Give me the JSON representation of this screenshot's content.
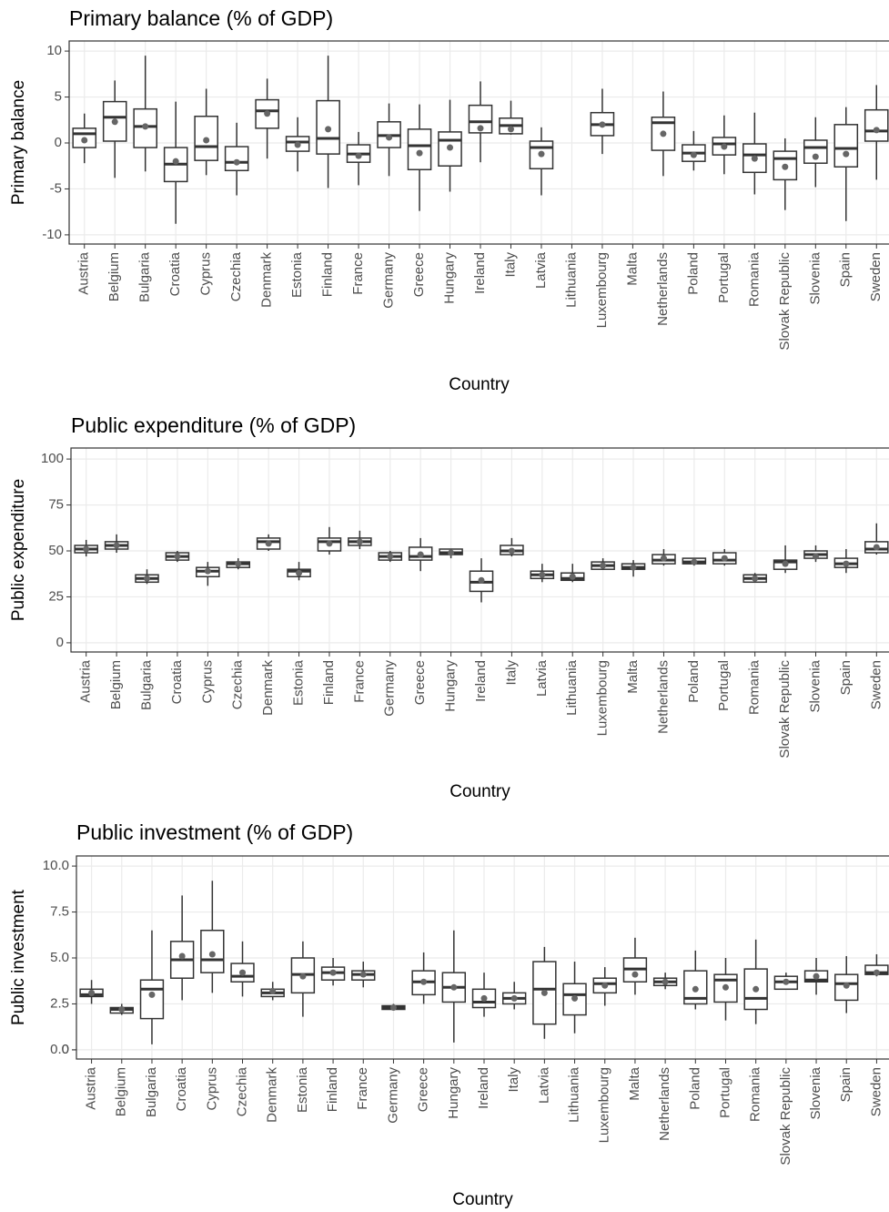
{
  "chart_data": [
    {
      "type": "box",
      "title": "Primary balance (% of GDP)",
      "x_label": "Country",
      "y_label": "Primary balance",
      "categories": [
        "Austria",
        "Belgium",
        "Bulgaria",
        "Croatia",
        "Cyprus",
        "Czechia",
        "Denmark",
        "Estonia",
        "Finland",
        "France",
        "Germany",
        "Greece",
        "Hungary",
        "Ireland",
        "Italy",
        "Latvia",
        "Lithuania",
        "Luxembourg",
        "Malta",
        "Netherlands",
        "Poland",
        "Portugal",
        "Romania",
        "Slovak Republic",
        "Slovenia",
        "Spain",
        "Sweden"
      ],
      "whisker_low": [
        -2.2,
        -3.8,
        -3.1,
        -8.8,
        -3.5,
        -5.7,
        -1.7,
        -3.1,
        -4.9,
        -4.6,
        -3.6,
        -7.4,
        -5.3,
        -2.1,
        0.9,
        -5.7,
        null,
        -1.2,
        null,
        -3.6,
        -3.0,
        -3.4,
        -5.6,
        -7.3,
        -4.8,
        -8.5,
        -4.0
      ],
      "q1": [
        -0.5,
        0.2,
        -0.5,
        -4.2,
        -1.9,
        -3.0,
        1.6,
        -0.9,
        -1.2,
        -2.1,
        -0.5,
        -2.9,
        -2.5,
        1.1,
        1.0,
        -2.8,
        null,
        0.8,
        null,
        -0.8,
        -2.0,
        -1.3,
        -3.2,
        -4.0,
        -2.2,
        -2.6,
        0.2
      ],
      "median": [
        1.0,
        2.8,
        1.8,
        -2.3,
        -0.4,
        -2.1,
        3.5,
        0.1,
        0.5,
        -1.2,
        0.8,
        -0.3,
        0.3,
        2.3,
        1.9,
        -0.5,
        null,
        2.0,
        null,
        2.2,
        -1.1,
        -0.1,
        -1.3,
        -1.7,
        -0.5,
        -0.6,
        1.3
      ],
      "q3": [
        1.6,
        4.5,
        3.7,
        -0.5,
        2.9,
        -0.4,
        4.7,
        0.7,
        4.6,
        -0.2,
        2.3,
        1.5,
        1.2,
        4.1,
        2.7,
        0.2,
        null,
        3.3,
        null,
        2.8,
        -0.2,
        0.6,
        -0.1,
        -0.9,
        0.3,
        2.0,
        3.6
      ],
      "whisker_high": [
        3.2,
        6.8,
        9.5,
        4.5,
        5.9,
        2.2,
        7.0,
        2.8,
        9.5,
        1.2,
        4.3,
        4.2,
        4.7,
        6.7,
        4.6,
        1.7,
        null,
        5.9,
        null,
        5.6,
        1.3,
        3.0,
        3.3,
        0.5,
        2.8,
        3.9,
        6.3
      ],
      "mean": [
        0.3,
        2.3,
        1.8,
        -2.0,
        0.3,
        -2.1,
        3.2,
        -0.2,
        1.5,
        -1.4,
        0.6,
        -1.1,
        -0.5,
        1.6,
        1.5,
        -1.2,
        null,
        2.0,
        null,
        1.0,
        -1.3,
        -0.4,
        -1.7,
        -2.6,
        -1.5,
        -1.2,
        1.4
      ],
      "ylim": [
        -11,
        11.1
      ],
      "yticks": [
        -10,
        -5,
        0,
        5,
        10
      ],
      "grid": true,
      "color": "#333333",
      "mean_color": "#666666"
    },
    {
      "type": "box",
      "title": "Public expenditure (% of GDP)",
      "x_label": "Country",
      "y_label": "Public expenditure",
      "categories": [
        "Austria",
        "Belgium",
        "Bulgaria",
        "Croatia",
        "Cyprus",
        "Czechia",
        "Denmark",
        "Estonia",
        "Finland",
        "France",
        "Germany",
        "Greece",
        "Hungary",
        "Ireland",
        "Italy",
        "Latvia",
        "Lithuania",
        "Luxembourg",
        "Malta",
        "Netherlands",
        "Poland",
        "Portugal",
        "Romania",
        "Slovak Republic",
        "Slovenia",
        "Spain",
        "Sweden"
      ],
      "whisker_low": [
        47,
        49,
        32,
        44,
        31,
        40,
        50,
        34,
        48,
        51,
        44,
        39,
        46,
        22,
        47,
        33,
        33,
        40,
        36,
        42,
        42,
        42,
        33,
        38,
        44,
        38,
        48
      ],
      "q1": [
        49,
        51,
        33,
        45,
        36,
        41,
        51,
        36,
        50,
        53,
        45,
        45,
        48,
        28,
        48,
        35,
        34,
        40,
        40,
        43,
        43,
        43,
        33,
        40,
        46,
        41,
        49
      ],
      "median": [
        51,
        53,
        35,
        47,
        39,
        43,
        55,
        39,
        55,
        55,
        47,
        47,
        49,
        33,
        50,
        37,
        35,
        42,
        41,
        45,
        44,
        45,
        35,
        44,
        48,
        43,
        51
      ],
      "q3": [
        53,
        55,
        37,
        49,
        41,
        44,
        57,
        40,
        57,
        57,
        49,
        52,
        51,
        39,
        53,
        39,
        38,
        44,
        43,
        48,
        46,
        49,
        37,
        45,
        50,
        46,
        55
      ],
      "whisker_high": [
        56,
        59,
        40,
        50,
        44,
        46,
        59,
        44,
        63,
        61,
        50,
        57,
        51,
        46,
        57,
        43,
        43,
        46,
        45,
        51,
        46,
        51,
        38,
        53,
        53,
        51,
        65
      ],
      "mean": [
        51,
        53,
        35,
        47,
        39,
        43,
        54,
        38,
        54,
        55,
        47,
        48,
        49,
        34,
        50,
        37,
        36,
        42,
        41,
        46,
        44,
        46,
        35,
        43,
        47,
        43,
        52
      ],
      "ylim": [
        -5,
        106
      ],
      "yticks": [
        0,
        25,
        50,
        75,
        100
      ],
      "grid": true,
      "color": "#333333",
      "mean_color": "#666666"
    },
    {
      "type": "box",
      "title": "Public investment (% of GDP)",
      "x_label": "Country",
      "y_label": "Public investment",
      "categories": [
        "Austria",
        "Belgium",
        "Bulgaria",
        "Croatia",
        "Cyprus",
        "Czechia",
        "Denmark",
        "Estonia",
        "Finland",
        "France",
        "Germany",
        "Greece",
        "Hungary",
        "Ireland",
        "Italy",
        "Latvia",
        "Lithuania",
        "Luxembourg",
        "Malta",
        "Netherlands",
        "Poland",
        "Portugal",
        "Romania",
        "Slovak Republic",
        "Slovenia",
        "Spain",
        "Sweden"
      ],
      "whisker_low": [
        2.5,
        1.9,
        0.3,
        2.7,
        3.1,
        2.9,
        2.7,
        1.8,
        3.5,
        3.4,
        2.2,
        2.5,
        0.4,
        1.8,
        2.2,
        0.6,
        0.9,
        2.4,
        3.0,
        3.3,
        2.2,
        1.6,
        1.4,
        3.3,
        3.0,
        2.0,
        4.0
      ],
      "q1": [
        2.9,
        2.0,
        1.7,
        3.9,
        4.2,
        3.7,
        2.9,
        3.1,
        3.8,
        3.8,
        2.2,
        3.0,
        2.6,
        2.3,
        2.5,
        1.4,
        1.9,
        3.1,
        3.7,
        3.5,
        2.5,
        2.6,
        2.2,
        3.3,
        3.7,
        2.7,
        4.1
      ],
      "median": [
        3.0,
        2.2,
        3.3,
        4.9,
        4.9,
        4.0,
        3.1,
        4.1,
        4.2,
        4.1,
        2.3,
        3.7,
        3.4,
        2.6,
        2.8,
        3.3,
        3.0,
        3.6,
        4.4,
        3.7,
        2.8,
        3.8,
        2.8,
        3.7,
        3.8,
        3.6,
        4.2
      ],
      "q3": [
        3.3,
        2.3,
        3.8,
        5.9,
        6.5,
        4.7,
        3.3,
        5.0,
        4.5,
        4.3,
        2.4,
        4.3,
        4.2,
        3.3,
        3.1,
        4.8,
        3.6,
        3.9,
        5.0,
        3.9,
        4.3,
        4.1,
        4.4,
        4.0,
        4.3,
        4.1,
        4.6
      ],
      "whisker_high": [
        3.8,
        2.5,
        6.5,
        8.4,
        9.2,
        5.9,
        3.7,
        5.9,
        5.0,
        4.8,
        2.5,
        5.3,
        6.5,
        4.2,
        3.7,
        5.6,
        4.8,
        4.5,
        6.1,
        4.2,
        5.4,
        5.0,
        6.0,
        4.2,
        5.0,
        5.1,
        5.2
      ],
      "mean": [
        3.1,
        2.2,
        3.0,
        5.1,
        5.2,
        4.2,
        3.2,
        4.0,
        4.2,
        4.1,
        2.3,
        3.7,
        3.4,
        2.8,
        2.8,
        3.1,
        2.8,
        3.5,
        4.1,
        3.7,
        3.3,
        3.4,
        3.3,
        3.7,
        4.0,
        3.5,
        4.2
      ],
      "ylim": [
        -0.5,
        10.55
      ],
      "yticks": [
        0,
        {
          "value": 0,
          "label": "0.0"
        },
        2.5,
        {
          "value": 5,
          "label": "5.0"
        },
        7.5,
        {
          "value": 10,
          "label": "10.0"
        }
      ],
      "grid": true,
      "color": "#333333",
      "mean_color": "#666666"
    }
  ]
}
